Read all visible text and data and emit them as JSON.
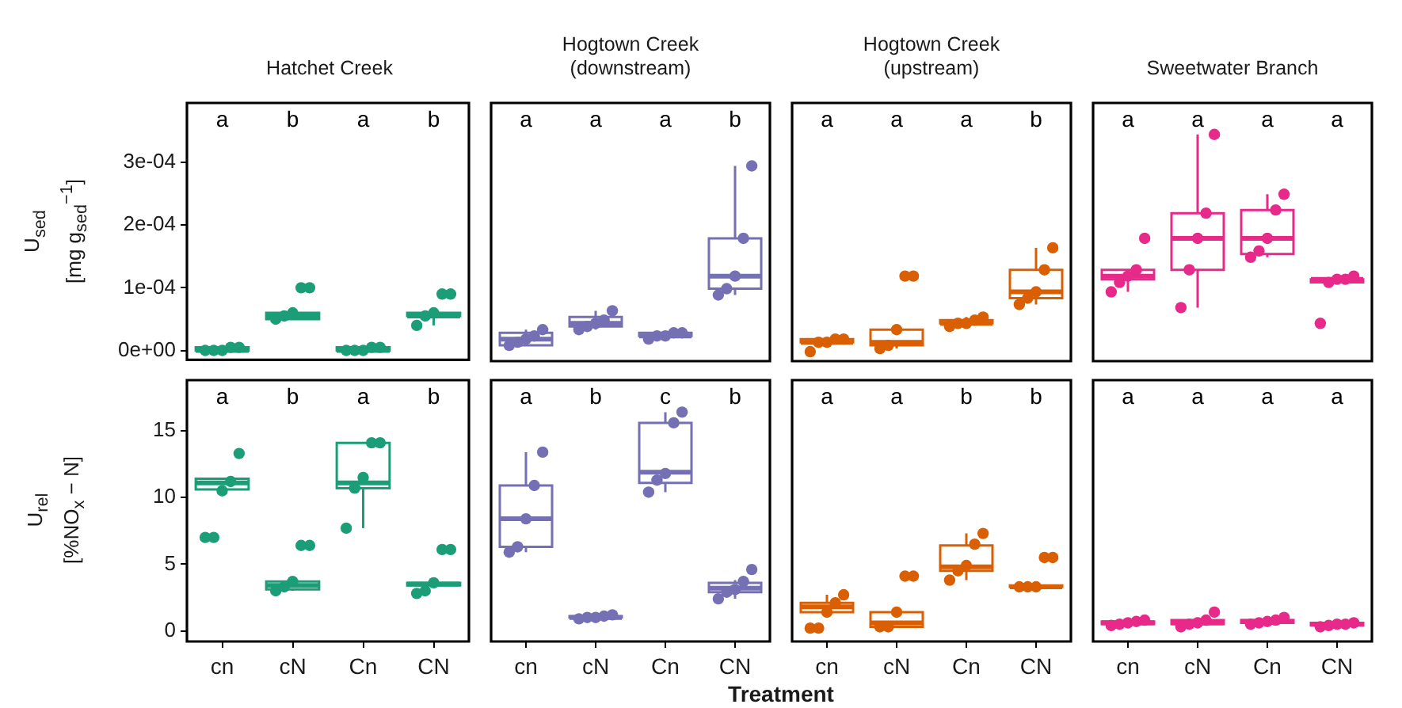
{
  "chart_data": [
    {
      "type": "box",
      "title": "Hatchet Creek",
      "ylabel": "U$_{sed}$\n[mg g$_{sed}$$^{−1}$]",
      "categories": [
        "cn",
        "cN",
        "Cn",
        "CN"
      ],
      "ylim": [
        -1.5e-05,
        0.000395
      ],
      "yticks": [
        {
          "value": 0,
          "label": "0e+00"
        },
        {
          "value": 0.0001,
          "label": "1e-04"
        },
        {
          "value": 0.0002,
          "label": "2e-04"
        },
        {
          "value": 0.0003,
          "label": "3e-04"
        }
      ],
      "tick_labels": "y",
      "marker": "circle",
      "annotations": [
        "a",
        "b",
        "a",
        "b"
      ],
      "series": [
        {
          "type": "box",
          "color": "#1b9e77",
          "boxes": [
            {
              "low": 0,
              "q1": 0,
              "median": 0,
              "q3": 5e-06,
              "high": 5e-06
            },
            {
              "low": 5e-05,
              "q1": 5e-05,
              "median": 5.5e-05,
              "q3": 6e-05,
              "high": 6e-05
            },
            {
              "low": 0,
              "q1": 0,
              "median": 0,
              "q3": 5e-06,
              "high": 5e-06
            },
            {
              "low": 4e-05,
              "q1": 5.5e-05,
              "median": 5.5e-05,
              "q3": 6e-05,
              "high": 6e-05
            }
          ]
        },
        {
          "type": "scatter",
          "color": "#1b9e77",
          "x": [
            "cn",
            "cn",
            "cn",
            "cn",
            "cn",
            "cN",
            "cN",
            "cN",
            "cN",
            "cN",
            "Cn",
            "Cn",
            "Cn",
            "Cn",
            "Cn",
            "CN",
            "CN",
            "CN",
            "CN",
            "CN"
          ],
          "values": [
            0,
            0,
            0,
            5e-06,
            5e-06,
            5e-05,
            5.5e-05,
            6e-05,
            0.0001,
            0.0001,
            0,
            0,
            0,
            5e-06,
            5e-06,
            4e-05,
            5.5e-05,
            6e-05,
            9e-05,
            9e-05
          ]
        }
      ]
    },
    {
      "type": "box",
      "title": "Hogtown Creek\n(downstream)",
      "categories": [
        "cn",
        "cN",
        "Cn",
        "CN"
      ],
      "ylim": [
        -1.5e-05,
        0.000395
      ],
      "tick_labels": false,
      "marker": "circle",
      "annotations": [
        "a",
        "a",
        "a",
        "b"
      ],
      "series": [
        {
          "type": "box",
          "color": "#7570b3",
          "boxes": [
            {
              "low": 1e-05,
              "q1": 1e-05,
              "median": 2e-05,
              "q3": 3e-05,
              "high": 3.5e-05
            },
            {
              "low": 3.5e-05,
              "q1": 4e-05,
              "median": 4.5e-05,
              "q3": 5.5e-05,
              "high": 6.5e-05
            },
            {
              "low": 2e-05,
              "q1": 2.5e-05,
              "median": 2.5e-05,
              "q3": 3e-05,
              "high": 3e-05
            },
            {
              "low": 9e-05,
              "q1": 0.0001,
              "median": 0.00012,
              "q3": 0.00018,
              "high": 0.000295
            }
          ]
        },
        {
          "type": "scatter",
          "color": "#7570b3",
          "x": [
            "cn",
            "cn",
            "cn",
            "cn",
            "cn",
            "cN",
            "cN",
            "cN",
            "cN",
            "cN",
            "Cn",
            "Cn",
            "Cn",
            "Cn",
            "Cn",
            "CN",
            "CN",
            "CN",
            "CN",
            "CN"
          ],
          "values": [
            1e-05,
            1.5e-05,
            2e-05,
            2.5e-05,
            3.5e-05,
            3.5e-05,
            4e-05,
            4.5e-05,
            5e-05,
            6.5e-05,
            2e-05,
            2.5e-05,
            2.5e-05,
            3e-05,
            3e-05,
            9e-05,
            0.0001,
            0.00012,
            0.00018,
            0.000295
          ]
        }
      ]
    },
    {
      "type": "box",
      "title": "Hogtown Creek\n(upstream)",
      "categories": [
        "cn",
        "cN",
        "Cn",
        "CN"
      ],
      "ylim": [
        -1.5e-05,
        0.000395
      ],
      "tick_labels": false,
      "marker": "circle",
      "annotations": [
        "a",
        "a",
        "a",
        "b"
      ],
      "series": [
        {
          "type": "box",
          "color": "#d95f02",
          "boxes": [
            {
              "low": 1.5e-05,
              "q1": 1.5e-05,
              "median": 1.5e-05,
              "q3": 2e-05,
              "high": 2e-05
            },
            {
              "low": 5e-06,
              "q1": 1e-05,
              "median": 1.5e-05,
              "q3": 3.5e-05,
              "high": 3.5e-05
            },
            {
              "low": 4e-05,
              "q1": 4.5e-05,
              "median": 4.5e-05,
              "q3": 5e-05,
              "high": 5.5e-05
            },
            {
              "low": 7.5e-05,
              "q1": 8.5e-05,
              "median": 9.5e-05,
              "q3": 0.00013,
              "high": 0.000165
            }
          ]
        },
        {
          "type": "scatter",
          "color": "#d95f02",
          "x": [
            "cn",
            "cn",
            "cn",
            "cn",
            "cn",
            "cN",
            "cN",
            "cN",
            "cN",
            "cN",
            "Cn",
            "Cn",
            "Cn",
            "Cn",
            "Cn",
            "CN",
            "CN",
            "CN",
            "CN",
            "CN"
          ],
          "values": [
            0,
            1.5e-05,
            1.5e-05,
            2e-05,
            2e-05,
            5e-06,
            1e-05,
            3.5e-05,
            0.00012,
            0.00012,
            4e-05,
            4.5e-05,
            4.5e-05,
            5e-05,
            5.5e-05,
            7.5e-05,
            8.5e-05,
            9.5e-05,
            0.00013,
            0.000165
          ]
        }
      ]
    },
    {
      "type": "box",
      "title": "Sweetwater Branch",
      "categories": [
        "cn",
        "cN",
        "Cn",
        "CN"
      ],
      "ylim": [
        -1.5e-05,
        0.000395
      ],
      "tick_labels": false,
      "marker": "circle",
      "annotations": [
        "a",
        "a",
        "a",
        "a"
      ],
      "series": [
        {
          "type": "box",
          "color": "#e7298a",
          "boxes": [
            {
              "low": 9.5e-05,
              "q1": 0.000115,
              "median": 0.00012,
              "q3": 0.00013,
              "high": 0.00013
            },
            {
              "low": 7e-05,
              "q1": 0.00013,
              "median": 0.00018,
              "q3": 0.00022,
              "high": 0.000345
            },
            {
              "low": 0.00015,
              "q1": 0.000155,
              "median": 0.00018,
              "q3": 0.000225,
              "high": 0.00025
            },
            {
              "low": 0.00011,
              "q1": 0.00011,
              "median": 0.000115,
              "q3": 0.000115,
              "high": 0.00012
            }
          ]
        },
        {
          "type": "scatter",
          "color": "#e7298a",
          "x": [
            "cn",
            "cn",
            "cn",
            "cn",
            "cn",
            "cN",
            "cN",
            "cN",
            "cN",
            "cN",
            "Cn",
            "Cn",
            "Cn",
            "Cn",
            "Cn",
            "CN",
            "CN",
            "CN",
            "CN",
            "CN"
          ],
          "values": [
            9.5e-05,
            0.00011,
            0.00012,
            0.00013,
            0.00018,
            7e-05,
            0.00013,
            0.00018,
            0.00022,
            0.000345,
            0.00015,
            0.00016,
            0.00018,
            0.000225,
            0.00025,
            4.5e-05,
            0.00011,
            0.000115,
            0.000115,
            0.00012
          ]
        }
      ]
    },
    {
      "type": "box",
      "ylabel": "U$_{rel}$\n[%NO$_{x}$ − N]",
      "categories": [
        "cn",
        "cN",
        "Cn",
        "CN"
      ],
      "ylim": [
        -0.8,
        18.8
      ],
      "yticks": [
        0,
        5,
        10,
        15
      ],
      "marker": "circle",
      "annotations": [
        "a",
        "b",
        "a",
        "b"
      ],
      "series": [
        {
          "type": "box",
          "color": "#1b9e77",
          "boxes": [
            {
              "low": 10.5,
              "q1": 10.6,
              "median": 11.1,
              "q3": 11.4,
              "high": 11.4
            },
            {
              "low": 3,
              "q1": 3.1,
              "median": 3.4,
              "q3": 3.7,
              "high": 3.8
            },
            {
              "low": 7.7,
              "q1": 10.7,
              "median": 11.1,
              "q3": 14.1,
              "high": 14.1
            },
            {
              "low": 3.3,
              "q1": 3.4,
              "median": 3.5,
              "q3": 3.6,
              "high": 3.7
            }
          ]
        },
        {
          "type": "scatter",
          "color": "#1b9e77",
          "x": [
            "cn",
            "cn",
            "cn",
            "cn",
            "cn",
            "cN",
            "cN",
            "cN",
            "cN",
            "cN",
            "Cn",
            "Cn",
            "Cn",
            "Cn",
            "Cn",
            "CN",
            "CN",
            "CN",
            "CN",
            "CN"
          ],
          "values": [
            7,
            7,
            10.5,
            11.2,
            13.3,
            3,
            3.3,
            3.7,
            6.4,
            6.4,
            7.7,
            10.7,
            11.5,
            14.1,
            14.1,
            2.8,
            3,
            3.6,
            6.1,
            6.1
          ]
        }
      ]
    },
    {
      "type": "box",
      "xlabel": "Treatment",
      "categories": [
        "cn",
        "cN",
        "Cn",
        "CN"
      ],
      "ylim": [
        -0.8,
        18.8
      ],
      "tick_labels": "x",
      "marker": "circle",
      "annotations": [
        "a",
        "b",
        "c",
        "b"
      ],
      "series": [
        {
          "type": "box",
          "color": "#7570b3",
          "boxes": [
            {
              "low": 5.9,
              "q1": 6.3,
              "median": 8.4,
              "q3": 10.9,
              "high": 13.4
            },
            {
              "low": 0.9,
              "q1": 1,
              "median": 1,
              "q3": 1.1,
              "high": 1.2
            },
            {
              "low": 10.4,
              "q1": 11.1,
              "median": 11.9,
              "q3": 15.6,
              "high": 16.4
            },
            {
              "low": 2.4,
              "q1": 2.9,
              "median": 3.2,
              "q3": 3.6,
              "high": 3.8
            }
          ]
        },
        {
          "type": "scatter",
          "color": "#7570b3",
          "x": [
            "cn",
            "cn",
            "cn",
            "cn",
            "cn",
            "cN",
            "cN",
            "cN",
            "cN",
            "cN",
            "Cn",
            "Cn",
            "Cn",
            "Cn",
            "Cn",
            "CN",
            "CN",
            "CN",
            "CN",
            "CN"
          ],
          "values": [
            5.9,
            6.3,
            8.4,
            10.9,
            13.4,
            0.9,
            1,
            1,
            1.1,
            1.2,
            10.4,
            11.3,
            11.8,
            15.6,
            16.4,
            2.4,
            2.9,
            3.1,
            3.7,
            4.6
          ]
        }
      ]
    },
    {
      "type": "box",
      "categories": [
        "cn",
        "cN",
        "Cn",
        "CN"
      ],
      "ylim": [
        -0.8,
        18.8
      ],
      "tick_labels": "x",
      "marker": "circle",
      "annotations": [
        "a",
        "a",
        "b",
        "b"
      ],
      "series": [
        {
          "type": "box",
          "color": "#d95f02",
          "boxes": [
            {
              "low": 1.3,
              "q1": 1.4,
              "median": 1.8,
              "q3": 2.1,
              "high": 2.7
            },
            {
              "low": 0.3,
              "q1": 0.3,
              "median": 0.6,
              "q3": 1.4,
              "high": 1.5
            },
            {
              "low": 3.8,
              "q1": 4.5,
              "median": 4.8,
              "q3": 6.4,
              "high": 7.3
            },
            {
              "low": 3.2,
              "q1": 3.3,
              "median": 3.3,
              "q3": 3.4,
              "high": 3.4
            }
          ]
        },
        {
          "type": "scatter",
          "color": "#d95f02",
          "x": [
            "cn",
            "cn",
            "cn",
            "cn",
            "cn",
            "cN",
            "cN",
            "cN",
            "cN",
            "cN",
            "Cn",
            "Cn",
            "Cn",
            "Cn",
            "Cn",
            "CN",
            "CN",
            "CN",
            "CN",
            "CN"
          ],
          "values": [
            0.2,
            0.2,
            1.4,
            2.1,
            2.7,
            0.3,
            0.3,
            1.4,
            4.1,
            4.1,
            3.8,
            4.5,
            4.9,
            6.5,
            7.3,
            3.3,
            3.3,
            3.3,
            5.5,
            5.5
          ]
        }
      ]
    },
    {
      "type": "box",
      "categories": [
        "cn",
        "cN",
        "Cn",
        "CN"
      ],
      "ylim": [
        -0.8,
        18.8
      ],
      "tick_labels": "x",
      "marker": "circle",
      "annotations": [
        "a",
        "a",
        "a",
        "a"
      ],
      "series": [
        {
          "type": "box",
          "color": "#e7298a",
          "boxes": [
            {
              "low": 0.4,
              "q1": 0.5,
              "median": 0.6,
              "q3": 0.7,
              "high": 0.8
            },
            {
              "low": 0.3,
              "q1": 0.5,
              "median": 0.6,
              "q3": 0.8,
              "high": 1
            },
            {
              "low": 0.5,
              "q1": 0.6,
              "median": 0.7,
              "q3": 0.8,
              "high": 1
            },
            {
              "low": 0.3,
              "q1": 0.4,
              "median": 0.5,
              "q3": 0.6,
              "high": 0.6
            }
          ]
        },
        {
          "type": "scatter",
          "color": "#e7298a",
          "x": [
            "cn",
            "cn",
            "cn",
            "cn",
            "cn",
            "cN",
            "cN",
            "cN",
            "cN",
            "cN",
            "Cn",
            "Cn",
            "Cn",
            "Cn",
            "Cn",
            "CN",
            "CN",
            "CN",
            "CN",
            "CN"
          ],
          "values": [
            0.4,
            0.5,
            0.6,
            0.7,
            0.8,
            0.3,
            0.5,
            0.6,
            0.8,
            1.4,
            0.5,
            0.6,
            0.7,
            0.8,
            1,
            0.3,
            0.4,
            0.5,
            0.5,
            0.6
          ]
        }
      ]
    }
  ]
}
